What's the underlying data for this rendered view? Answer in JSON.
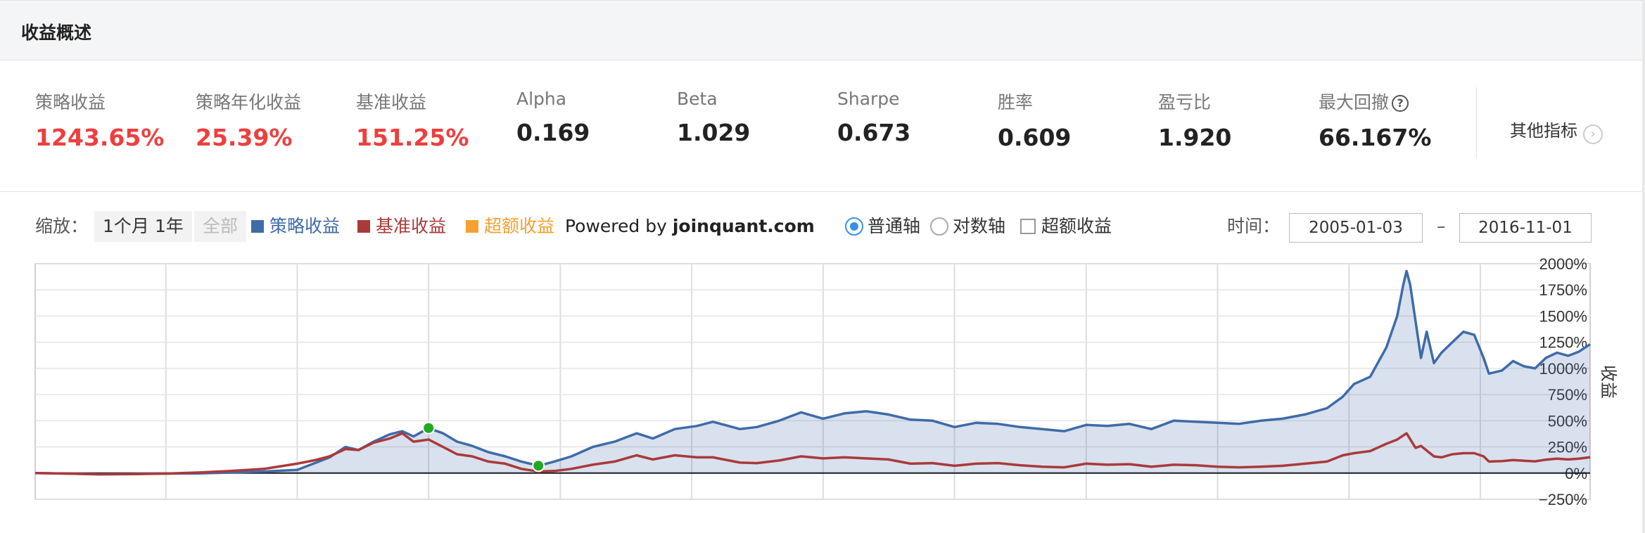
{
  "header": {
    "title": "收益概述"
  },
  "metrics": [
    {
      "label": "策略收益",
      "value": "1243.65%",
      "color": "#ef3e3e"
    },
    {
      "label": "策略年化收益",
      "value": "25.39%",
      "color": "#ef3e3e"
    },
    {
      "label": "基准收益",
      "value": "151.25%",
      "color": "#ef3e3e"
    },
    {
      "label": "Alpha",
      "value": "0.169"
    },
    {
      "label": "Beta",
      "value": "1.029"
    },
    {
      "label": "Sharpe",
      "value": "0.673"
    },
    {
      "label": "胜率",
      "value": "0.609"
    },
    {
      "label": "盈亏比",
      "value": "1.920"
    },
    {
      "label": "最大回撤",
      "value": "66.167%",
      "help_icon": "question-circle-icon"
    }
  ],
  "other_metrics": {
    "label": "其他指标",
    "icon": "chevron-right-circle-icon"
  },
  "controls": {
    "zoom_label": "缩放：",
    "zoom_buttons": [
      "1个月",
      "1年",
      "全部"
    ],
    "legend": [
      {
        "label": "策略收益",
        "color": "#3f6ba8"
      },
      {
        "label": "基准收益",
        "color": "#a93a3a"
      },
      {
        "label": "超额收益",
        "color": "#f5a030"
      }
    ],
    "powered_prefix": "Powered by ",
    "powered_brand": "joinquant.com",
    "axis_options": [
      {
        "label": "普通轴",
        "selected": true
      },
      {
        "label": "对数轴",
        "selected": false
      }
    ],
    "excess_checkbox": {
      "label": "超额收益",
      "checked": false
    },
    "time_label": "时间：",
    "date_from": "2005-01-03",
    "date_sep": "–",
    "date_to": "2016-11-01"
  },
  "chart_data": {
    "type": "area",
    "ylabel": "收益",
    "ylim": [
      -250,
      2000
    ],
    "yticks": [
      "2000%",
      "1750%",
      "1500%",
      "1250%",
      "1000%",
      "750%",
      "500%",
      "250%",
      "0%",
      "−250%"
    ],
    "grid": true,
    "x_range": [
      "2005-01-03",
      "2016-11-01"
    ],
    "series": [
      {
        "name": "策略收益",
        "color": "#3f6ba8",
        "fill": true,
        "points": [
          [
            "2005-01-03",
            0
          ],
          [
            "2005-04-01",
            -5
          ],
          [
            "2005-07-01",
            -10
          ],
          [
            "2005-10-01",
            -8
          ],
          [
            "2006-01-01",
            -5
          ],
          [
            "2006-04-01",
            -3
          ],
          [
            "2006-07-01",
            5
          ],
          [
            "2006-10-01",
            15
          ],
          [
            "2007-01-01",
            30
          ],
          [
            "2007-02-15",
            90
          ],
          [
            "2007-04-01",
            150
          ],
          [
            "2007-05-15",
            250
          ],
          [
            "2007-06-20",
            220
          ],
          [
            "2007-08-01",
            300
          ],
          [
            "2007-09-15",
            370
          ],
          [
            "2007-10-20",
            400
          ],
          [
            "2007-11-20",
            350
          ],
          [
            "2008-01-01",
            430
          ],
          [
            "2008-02-10",
            380
          ],
          [
            "2008-03-20",
            300
          ],
          [
            "2008-05-01",
            260
          ],
          [
            "2008-06-15",
            200
          ],
          [
            "2008-08-01",
            160
          ],
          [
            "2008-09-15",
            110
          ],
          [
            "2008-11-01",
            70
          ],
          [
            "2008-12-15",
            110
          ],
          [
            "2009-02-01",
            160
          ],
          [
            "2009-04-01",
            250
          ],
          [
            "2009-06-01",
            300
          ],
          [
            "2009-08-01",
            380
          ],
          [
            "2009-09-15",
            330
          ],
          [
            "2009-11-15",
            420
          ],
          [
            "2010-01-15",
            450
          ],
          [
            "2010-03-01",
            490
          ],
          [
            "2010-05-15",
            420
          ],
          [
            "2010-07-01",
            440
          ],
          [
            "2010-09-01",
            500
          ],
          [
            "2010-11-01",
            580
          ],
          [
            "2011-01-01",
            520
          ],
          [
            "2011-03-01",
            570
          ],
          [
            "2011-05-01",
            590
          ],
          [
            "2011-07-01",
            560
          ],
          [
            "2011-09-01",
            510
          ],
          [
            "2011-11-01",
            500
          ],
          [
            "2012-01-01",
            440
          ],
          [
            "2012-03-01",
            480
          ],
          [
            "2012-05-01",
            470
          ],
          [
            "2012-07-01",
            440
          ],
          [
            "2012-09-01",
            420
          ],
          [
            "2012-11-01",
            400
          ],
          [
            "2013-01-01",
            460
          ],
          [
            "2013-03-01",
            450
          ],
          [
            "2013-05-01",
            470
          ],
          [
            "2013-07-01",
            420
          ],
          [
            "2013-09-01",
            500
          ],
          [
            "2013-11-01",
            490
          ],
          [
            "2014-01-01",
            480
          ],
          [
            "2014-03-01",
            470
          ],
          [
            "2014-05-01",
            500
          ],
          [
            "2014-07-01",
            520
          ],
          [
            "2014-09-01",
            560
          ],
          [
            "2014-11-01",
            620
          ],
          [
            "2014-12-15",
            730
          ],
          [
            "2015-01-15",
            850
          ],
          [
            "2015-03-01",
            920
          ],
          [
            "2015-04-15",
            1200
          ],
          [
            "2015-05-15",
            1500
          ],
          [
            "2015-06-01",
            1800
          ],
          [
            "2015-06-10",
            1930
          ],
          [
            "2015-06-20",
            1800
          ],
          [
            "2015-07-05",
            1450
          ],
          [
            "2015-07-20",
            1100
          ],
          [
            "2015-08-05",
            1350
          ],
          [
            "2015-08-25",
            1050
          ],
          [
            "2015-09-15",
            1150
          ],
          [
            "2015-10-15",
            1250
          ],
          [
            "2015-11-15",
            1350
          ],
          [
            "2015-12-15",
            1320
          ],
          [
            "2016-01-10",
            1100
          ],
          [
            "2016-01-25",
            950
          ],
          [
            "2016-03-01",
            980
          ],
          [
            "2016-04-01",
            1070
          ],
          [
            "2016-05-01",
            1020
          ],
          [
            "2016-06-01",
            1000
          ],
          [
            "2016-07-01",
            1100
          ],
          [
            "2016-08-01",
            1150
          ],
          [
            "2016-09-01",
            1120
          ],
          [
            "2016-10-01",
            1160
          ],
          [
            "2016-11-01",
            1230
          ]
        ]
      },
      {
        "name": "基准收益",
        "color": "#a93a3a",
        "fill": false,
        "points": [
          [
            "2005-01-03",
            0
          ],
          [
            "2005-04-01",
            -5
          ],
          [
            "2005-07-01",
            -12
          ],
          [
            "2005-10-01",
            -10
          ],
          [
            "2006-01-01",
            -5
          ],
          [
            "2006-04-01",
            5
          ],
          [
            "2006-07-01",
            20
          ],
          [
            "2006-10-01",
            40
          ],
          [
            "2007-01-01",
            90
          ],
          [
            "2007-02-15",
            120
          ],
          [
            "2007-04-01",
            160
          ],
          [
            "2007-05-15",
            230
          ],
          [
            "2007-06-20",
            220
          ],
          [
            "2007-08-01",
            290
          ],
          [
            "2007-09-15",
            330
          ],
          [
            "2007-10-20",
            380
          ],
          [
            "2007-11-20",
            300
          ],
          [
            "2008-01-01",
            320
          ],
          [
            "2008-02-10",
            250
          ],
          [
            "2008-03-20",
            180
          ],
          [
            "2008-05-01",
            160
          ],
          [
            "2008-06-15",
            110
          ],
          [
            "2008-08-01",
            90
          ],
          [
            "2008-09-15",
            40
          ],
          [
            "2008-11-01",
            15
          ],
          [
            "2008-12-15",
            20
          ],
          [
            "2009-02-01",
            40
          ],
          [
            "2009-04-01",
            80
          ],
          [
            "2009-06-01",
            110
          ],
          [
            "2009-08-01",
            170
          ],
          [
            "2009-09-15",
            130
          ],
          [
            "2009-11-15",
            170
          ],
          [
            "2010-01-15",
            150
          ],
          [
            "2010-03-01",
            150
          ],
          [
            "2010-05-15",
            100
          ],
          [
            "2010-07-01",
            95
          ],
          [
            "2010-09-01",
            120
          ],
          [
            "2010-11-01",
            160
          ],
          [
            "2011-01-01",
            140
          ],
          [
            "2011-03-01",
            150
          ],
          [
            "2011-05-01",
            140
          ],
          [
            "2011-07-01",
            130
          ],
          [
            "2011-09-01",
            90
          ],
          [
            "2011-11-01",
            95
          ],
          [
            "2012-01-01",
            70
          ],
          [
            "2012-03-01",
            90
          ],
          [
            "2012-05-01",
            95
          ],
          [
            "2012-07-01",
            75
          ],
          [
            "2012-09-01",
            60
          ],
          [
            "2012-11-01",
            55
          ],
          [
            "2013-01-01",
            90
          ],
          [
            "2013-03-01",
            80
          ],
          [
            "2013-05-01",
            85
          ],
          [
            "2013-07-01",
            60
          ],
          [
            "2013-09-01",
            80
          ],
          [
            "2013-11-01",
            75
          ],
          [
            "2014-01-01",
            60
          ],
          [
            "2014-03-01",
            55
          ],
          [
            "2014-05-01",
            60
          ],
          [
            "2014-07-01",
            70
          ],
          [
            "2014-09-01",
            90
          ],
          [
            "2014-11-01",
            110
          ],
          [
            "2014-12-15",
            170
          ],
          [
            "2015-01-15",
            190
          ],
          [
            "2015-03-01",
            210
          ],
          [
            "2015-04-15",
            280
          ],
          [
            "2015-05-15",
            320
          ],
          [
            "2015-06-10",
            380
          ],
          [
            "2015-07-05",
            240
          ],
          [
            "2015-07-20",
            260
          ],
          [
            "2015-08-25",
            160
          ],
          [
            "2015-09-15",
            150
          ],
          [
            "2015-10-15",
            180
          ],
          [
            "2015-11-15",
            190
          ],
          [
            "2015-12-15",
            190
          ],
          [
            "2016-01-10",
            160
          ],
          [
            "2016-01-25",
            110
          ],
          [
            "2016-03-01",
            115
          ],
          [
            "2016-04-01",
            125
          ],
          [
            "2016-05-01",
            118
          ],
          [
            "2016-06-01",
            112
          ],
          [
            "2016-07-01",
            128
          ],
          [
            "2016-08-01",
            138
          ],
          [
            "2016-09-01",
            130
          ],
          [
            "2016-10-01",
            138
          ],
          [
            "2016-11-01",
            151
          ]
        ]
      }
    ],
    "markers": [
      {
        "date": "2008-01-01",
        "value": 430,
        "color": "#22a822"
      },
      {
        "date": "2008-11-01",
        "value": 70,
        "color": "#22a822"
      }
    ]
  }
}
